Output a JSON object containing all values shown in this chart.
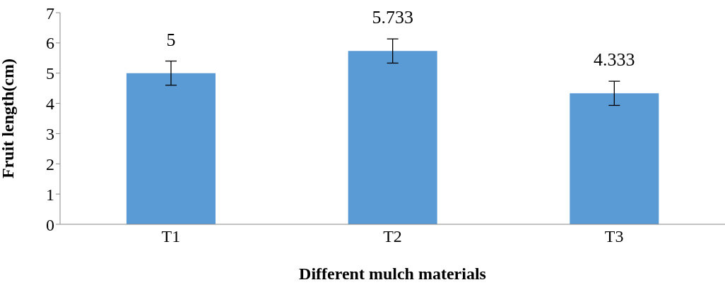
{
  "chart_data": {
    "type": "bar",
    "xlabel": "Different mulch materials",
    "ylabel": "Fruit length(cm)",
    "categories": [
      "T1",
      "T2",
      "T3"
    ],
    "values": [
      5,
      5.733,
      4.333
    ],
    "errors": [
      0.4,
      0.4,
      0.4
    ],
    "color": "#5b9bd5",
    "ylim": [
      0,
      7
    ],
    "yticks": [
      0,
      1,
      2,
      3,
      4,
      5,
      6,
      7
    ],
    "grid": false,
    "data_labels": true
  }
}
